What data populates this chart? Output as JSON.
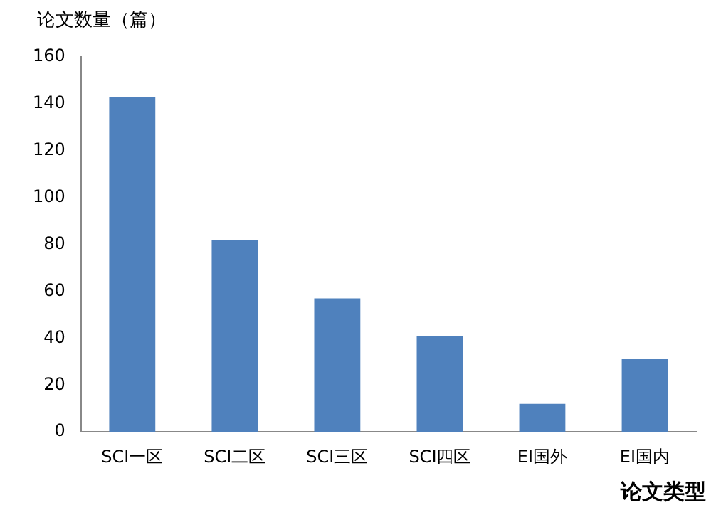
{
  "chart_data": {
    "type": "bar",
    "ylabel": "论文数量（篇）",
    "xlabel": "论文类型",
    "categories": [
      "SCI一区",
      "SCI二区",
      "SCI三区",
      "SCI四区",
      "EI国外",
      "EI国内"
    ],
    "values": [
      143,
      82,
      57,
      41,
      12,
      31
    ],
    "color": "#4f81bd",
    "ylim": [
      0,
      160
    ],
    "yticks": [
      0,
      20,
      40,
      60,
      80,
      100,
      120,
      140,
      160
    ],
    "grid": false,
    "legend": false
  }
}
